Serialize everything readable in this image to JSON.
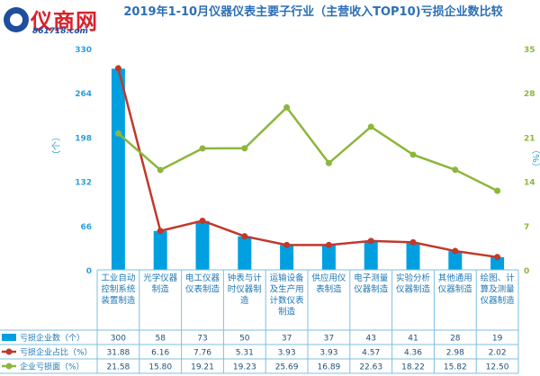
{
  "logo": {
    "main": "仪商网",
    "sub": "861718.com",
    "sup": "®"
  },
  "chart_data": {
    "type": "bar+line",
    "title": "2019年1-10月仪器仪表主要子行业（主营收入TOP10)亏损企业数比较",
    "categories": [
      "工业自动控制系统装置制造",
      "光学仪器制造",
      "电工仪器仪表制造",
      "钟表与计时仪器制造",
      "运输设备及生产用计数仪表制造",
      "供应用仪表制造",
      "电子测量仪器制造",
      "实验分析仪器制造",
      "其他通用仪器制造",
      "绘图、计算及测量仪器制造"
    ],
    "y_left": {
      "label": "（个）",
      "ticks": [
        0,
        66,
        132,
        198,
        264,
        330
      ],
      "range": [
        0,
        330
      ]
    },
    "y_right": {
      "label": "（%）",
      "ticks": [
        0,
        7,
        14,
        21,
        28,
        35
      ],
      "range": [
        0,
        35
      ]
    },
    "series": [
      {
        "name": "亏损企业数（个）",
        "type": "bar",
        "axis": "left",
        "color": "#00a0e0",
        "values": [
          300,
          58,
          73,
          50,
          37,
          37,
          43,
          41,
          28,
          19
        ],
        "display": [
          "300",
          "58",
          "73",
          "50",
          "37",
          "37",
          "43",
          "41",
          "28",
          "19"
        ]
      },
      {
        "name": "亏损企业占比（%）",
        "type": "line",
        "axis": "right",
        "color": "#c0392b",
        "values": [
          31.88,
          6.16,
          7.76,
          5.31,
          3.93,
          3.93,
          4.57,
          4.36,
          2.98,
          2.02
        ],
        "display": [
          "31.88",
          "6.16",
          "7.76",
          "5.31",
          "3.93",
          "3.93",
          "4.57",
          "4.36",
          "2.98",
          "2.02"
        ]
      },
      {
        "name": "企业亏损面（%）",
        "type": "line",
        "axis": "right",
        "color": "#8db63c",
        "values": [
          21.58,
          15.8,
          19.21,
          19.23,
          25.69,
          16.89,
          22.63,
          18.22,
          15.82,
          12.5
        ],
        "display": [
          "21.58",
          "15.80",
          "19.21",
          "19.23",
          "25.69",
          "16.89",
          "22.63",
          "18.22",
          "15.82",
          "12.50"
        ]
      }
    ],
    "legend_position": "table-below",
    "grid": false
  }
}
